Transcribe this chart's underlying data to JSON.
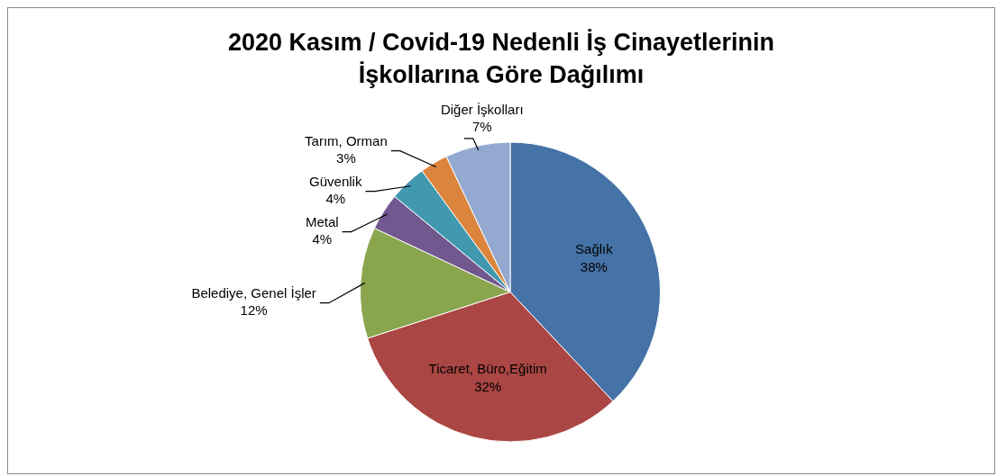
{
  "chart_data": {
    "type": "pie",
    "title": "2020 Kasım / Covid-19 Nedenli İş Cinayetlerinin İşkollarına Göre Dağılımı",
    "categories": [
      "Sağlık",
      "Ticaret, Büro,Eğitim",
      "Belediye, Genel İşler",
      "Metal",
      "Güvenlik",
      "Tarım, Orman",
      "Diğer İşkolları"
    ],
    "values": [
      38,
      32,
      12,
      4,
      4,
      3,
      7
    ],
    "colors": [
      "#4572a7",
      "#aa4643",
      "#89a54e",
      "#71588f",
      "#4198af",
      "#db843d",
      "#93a9cf"
    ],
    "value_labels": [
      "38%",
      "32%",
      "12%",
      "4%",
      "4%",
      "3%",
      "7%"
    ],
    "legend": false
  }
}
